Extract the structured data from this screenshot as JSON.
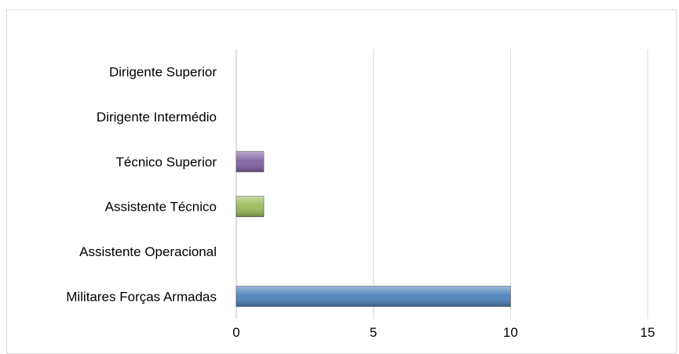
{
  "chart_data": {
    "type": "bar",
    "orientation": "horizontal",
    "title": "",
    "xlabel": "",
    "ylabel": "",
    "categories": [
      "Dirigente Superior",
      "Dirigente Intermédio",
      "Técnico Superior",
      "Assistente Técnico",
      "Assistente Operacional",
      "Militares Forças Armadas"
    ],
    "values": [
      0,
      0,
      1,
      1,
      0,
      10
    ],
    "bar_colors": [
      "#4f81bd",
      "#c0504d",
      "#8064a2",
      "#9bbb59",
      "#f79646",
      "#4f81bd"
    ],
    "xlim": [
      0,
      15
    ],
    "x_ticks": [
      "0",
      "5",
      "10",
      "15"
    ],
    "grid": "vertical",
    "legend": "none"
  }
}
